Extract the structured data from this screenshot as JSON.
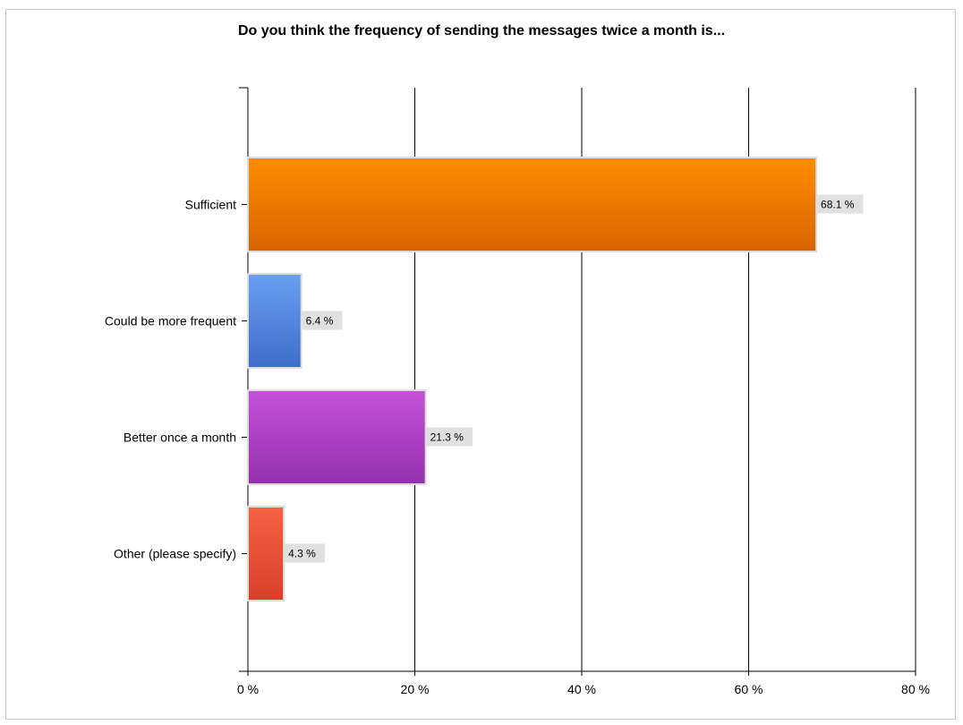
{
  "chart_data": {
    "type": "bar",
    "orientation": "horizontal",
    "title": "Do you think the frequency of sending the messages twice a month is...",
    "categories": [
      "Sufficient",
      "Could be more frequent",
      "Better once a month",
      "Other (please specify)"
    ],
    "values": [
      68.1,
      6.4,
      21.3,
      4.3
    ],
    "value_labels": [
      "68.1 %",
      "6.4 %",
      "21.3 %",
      "4.3 %"
    ],
    "bar_colors": [
      {
        "top": "#ff8c00",
        "bottom": "#d96400"
      },
      {
        "top": "#6a9ff0",
        "bottom": "#3e6ec9"
      },
      {
        "top": "#c552d8",
        "bottom": "#9430ad"
      },
      {
        "top": "#f56244",
        "bottom": "#d8402a"
      }
    ],
    "xlim": [
      0,
      80
    ],
    "xticks": [
      0,
      20,
      40,
      60,
      80
    ],
    "xtick_labels": [
      "0 %",
      "20 %",
      "40 %",
      "60 %",
      "80 %"
    ],
    "grid": true,
    "legend": "none"
  }
}
